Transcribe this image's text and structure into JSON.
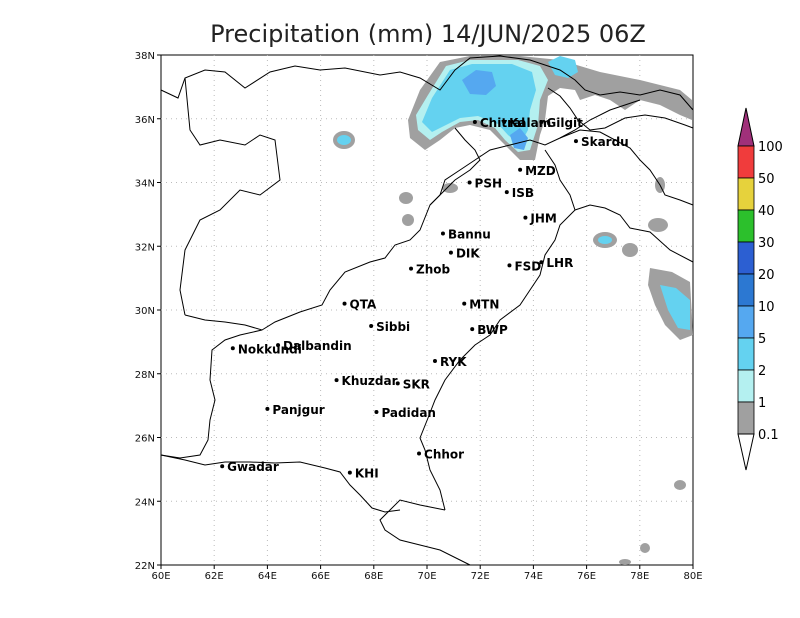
{
  "title": "Precipitation (mm) 14/JUN/2025 06Z",
  "map": {
    "lon_range": [
      60,
      80
    ],
    "lat_range": [
      22,
      38
    ],
    "x_ticks": [
      "60E",
      "62E",
      "64E",
      "66E",
      "68E",
      "70E",
      "72E",
      "74E",
      "76E",
      "78E",
      "80E"
    ],
    "y_ticks": [
      "22N",
      "24N",
      "26N",
      "28N",
      "30N",
      "32N",
      "34N",
      "36N",
      "38N"
    ],
    "grid": true
  },
  "colorbar": {
    "labels": [
      "100",
      "50",
      "40",
      "30",
      "20",
      "10",
      "5",
      "2",
      "1",
      "0.1"
    ],
    "colors": [
      "#a0307a",
      "#f03c3c",
      "#e6d23c",
      "#2cc02c",
      "#2c5fd2",
      "#2c78d2",
      "#55a8f0",
      "#64d2f0",
      "#b4f0f0",
      "#a0a0a0",
      "#ffffff"
    ]
  },
  "stations": [
    {
      "name": "Chitral",
      "lon": 71.8,
      "lat": 35.9
    },
    {
      "name": "Kalam",
      "lon": 72.9,
      "lat": 35.9
    },
    {
      "name": "Gilgit",
      "lon": 74.3,
      "lat": 35.9
    },
    {
      "name": "Skardu",
      "lon": 75.6,
      "lat": 35.3
    },
    {
      "name": "MZD",
      "lon": 73.5,
      "lat": 34.4
    },
    {
      "name": "PSH",
      "lon": 71.6,
      "lat": 34.0
    },
    {
      "name": "ISB",
      "lon": 73.0,
      "lat": 33.7
    },
    {
      "name": "JHM",
      "lon": 73.7,
      "lat": 32.9
    },
    {
      "name": "Bannu",
      "lon": 70.6,
      "lat": 32.4
    },
    {
      "name": "DIK",
      "lon": 70.9,
      "lat": 31.8
    },
    {
      "name": "FSD",
      "lon": 73.1,
      "lat": 31.4
    },
    {
      "name": "LHR",
      "lon": 74.3,
      "lat": 31.5
    },
    {
      "name": "Zhob",
      "lon": 69.4,
      "lat": 31.3
    },
    {
      "name": "QTA",
      "lon": 66.9,
      "lat": 30.2
    },
    {
      "name": "MTN",
      "lon": 71.4,
      "lat": 30.2
    },
    {
      "name": "Sibbi",
      "lon": 67.9,
      "lat": 29.5
    },
    {
      "name": "BWP",
      "lon": 71.7,
      "lat": 29.4
    },
    {
      "name": "Dalbandin",
      "lon": 64.4,
      "lat": 28.9
    },
    {
      "name": "Nokkundi",
      "lon": 62.7,
      "lat": 28.8
    },
    {
      "name": "RYK",
      "lon": 70.3,
      "lat": 28.4
    },
    {
      "name": "Khuzdar",
      "lon": 66.6,
      "lat": 27.8
    },
    {
      "name": "SKR",
      "lon": 68.9,
      "lat": 27.7
    },
    {
      "name": "Panjgur",
      "lon": 64.0,
      "lat": 26.9
    },
    {
      "name": "Padidan",
      "lon": 68.1,
      "lat": 26.8
    },
    {
      "name": "Chhor",
      "lon": 69.7,
      "lat": 25.5
    },
    {
      "name": "KHI",
      "lon": 67.1,
      "lat": 24.9
    },
    {
      "name": "Gwadar",
      "lon": 62.3,
      "lat": 25.1
    }
  ]
}
